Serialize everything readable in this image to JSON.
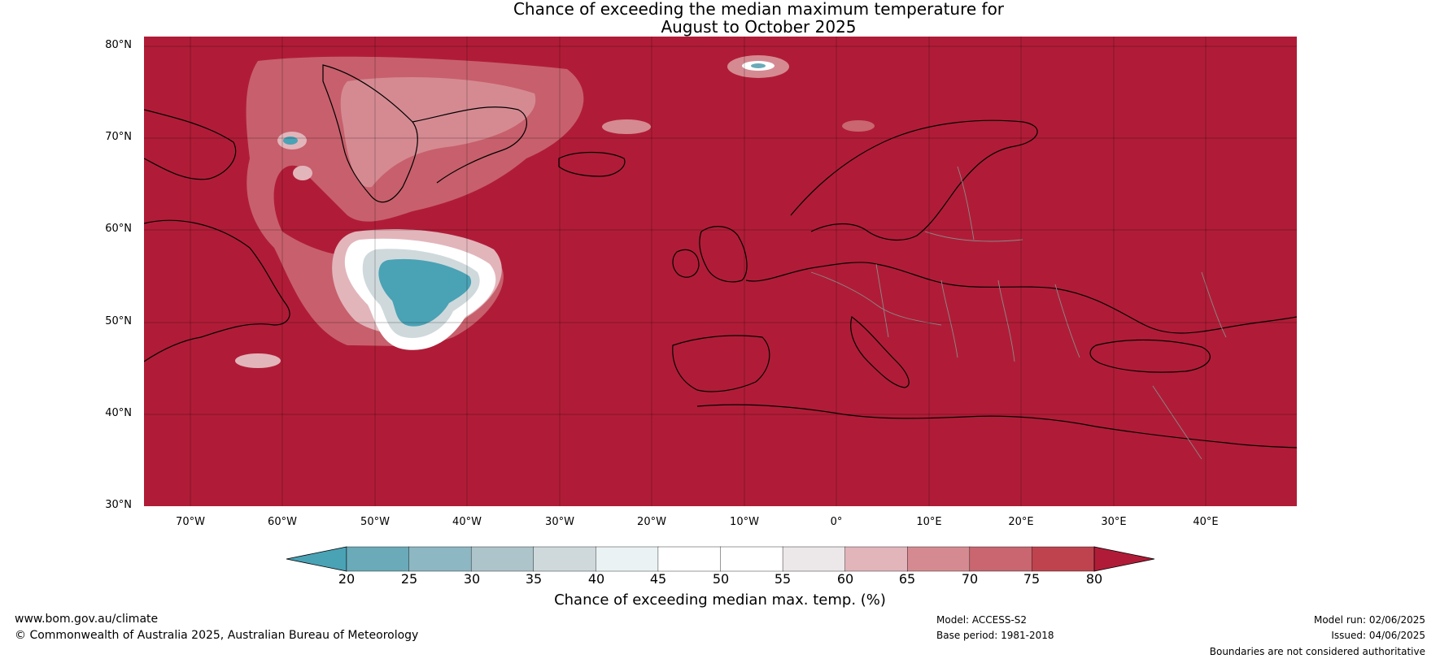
{
  "title": {
    "line1": "Chance of exceeding the median maximum temperature for",
    "line2": "August to October 2025"
  },
  "map": {
    "background_color": "#B01C37",
    "lat_labels": [
      "80°N",
      "70°N",
      "60°N",
      "50°N",
      "40°N",
      "30°N"
    ],
    "lon_labels": [
      "70°W",
      "60°W",
      "50°W",
      "40°W",
      "30°W",
      "20°W",
      "10°W",
      "0°",
      "10°E",
      "20°E",
      "30°E",
      "40°E"
    ]
  },
  "colorbar": {
    "title": "Chance of exceeding median max. temp. (%)",
    "ticks": [
      "20",
      "25",
      "30",
      "35",
      "40",
      "45",
      "50",
      "55",
      "60",
      "65",
      "70",
      "75",
      "80"
    ],
    "colors": [
      "#4AA2B5",
      "#6AAAB9",
      "#8DB7C3",
      "#ADC5CA",
      "#CFD9DC",
      "#EBF2F3",
      "#FFFFFF",
      "#FFFFFF",
      "#ECE7E8",
      "#E2B5BB",
      "#D58A92",
      "#C96670",
      "#BF434E",
      "#B01C37"
    ]
  },
  "footer": {
    "website": "www.bom.gov.au/climate",
    "copyright": "© Commonwealth of Australia 2025, Australian Bureau of Meteorology",
    "model": "Model: ACCESS-S2",
    "base_period": "Base period: 1981-2018",
    "model_run": "Model run: 02/06/2025",
    "issued": "Issued: 04/06/2025",
    "disclaimer": "Boundaries are not considered authoritative"
  }
}
